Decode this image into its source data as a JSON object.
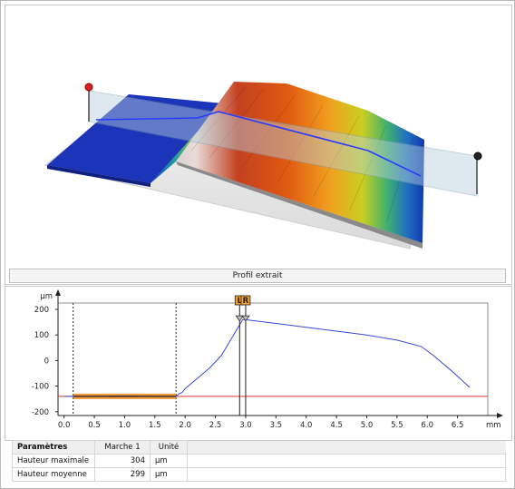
{
  "view3d": {
    "profile_button": "Profil extrait"
  },
  "chart_data": {
    "type": "line",
    "xlabel": "mm",
    "ylabel": "µm",
    "xlim": [
      -0.1,
      7.0
    ],
    "ylim": [
      -215,
      225
    ],
    "x_ticks": [
      "0.0",
      "0.5",
      "1.0",
      "1.5",
      "2.0",
      "2.5",
      "3.0",
      "3.5",
      "4.0",
      "4.5",
      "5.0",
      "5.5",
      "6.0",
      "6.5"
    ],
    "y_ticks": [
      "200",
      "100",
      "0",
      "-100",
      "-200"
    ],
    "cursor_labels": [
      "L",
      "R"
    ],
    "cursors": [
      2.9,
      3.0
    ],
    "dashed_lines": [
      0.15,
      1.85
    ],
    "reference_level": -140,
    "series": [
      {
        "x": [
          0.0,
          0.15,
          0.5,
          1.0,
          1.5,
          1.85,
          1.9,
          1.95,
          2.0,
          2.2,
          2.4,
          2.6,
          2.8,
          2.95,
          3.0,
          3.5,
          4.0,
          4.5,
          5.0,
          5.5,
          5.9,
          6.1,
          6.4,
          6.7
        ],
        "y": [
          -140,
          -140,
          -140,
          -139,
          -140,
          -140,
          -130,
          -125,
          -110,
          -70,
          -30,
          20,
          100,
          160,
          160,
          145,
          130,
          115,
          100,
          80,
          55,
          20,
          -40,
          -105
        ]
      }
    ]
  },
  "table": {
    "headers": [
      "Paramètres",
      "Marche 1",
      "Unité"
    ],
    "rows": [
      [
        "Hauteur maximale",
        "304",
        "µm"
      ],
      [
        "Hauteur moyenne",
        "299",
        "µm"
      ]
    ]
  },
  "colors": {
    "profile": "#3a48d8",
    "reference": "#e03030",
    "cursor_marker": "#f0a030",
    "selection": "#f09020"
  }
}
